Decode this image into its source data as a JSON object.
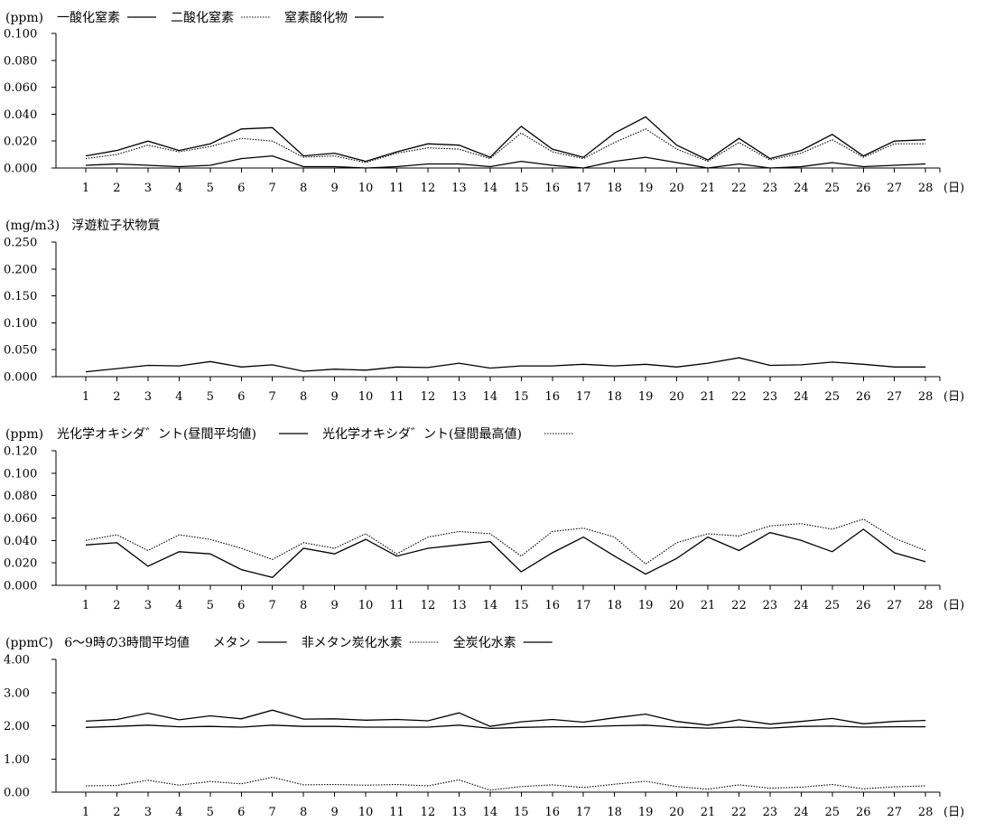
{
  "chart_data": [
    {
      "type": "line",
      "unit": "(ppm)",
      "legend_header": "",
      "x": [
        1,
        2,
        3,
        4,
        5,
        6,
        7,
        8,
        9,
        10,
        11,
        12,
        13,
        14,
        15,
        16,
        17,
        18,
        19,
        20,
        21,
        22,
        23,
        24,
        25,
        26,
        27,
        28
      ],
      "x_unit": "(日)",
      "ylim": [
        0,
        0.1
      ],
      "yticks": [
        "0.000",
        "0.020",
        "0.040",
        "0.060",
        "0.080",
        "0.100"
      ],
      "series": [
        {
          "name": "一酸化窒素",
          "style": "solid",
          "values": [
            0.002,
            0.003,
            0.002,
            0.001,
            0.002,
            0.007,
            0.009,
            0.001,
            0.001,
            0.0,
            0.001,
            0.003,
            0.003,
            0.001,
            0.005,
            0.002,
            0.0,
            0.005,
            0.008,
            0.004,
            0.0,
            0.003,
            0.0,
            0.001,
            0.004,
            0.001,
            0.002,
            0.003
          ]
        },
        {
          "name": "二酸化窒素",
          "style": "dotted",
          "values": [
            0.007,
            0.01,
            0.017,
            0.012,
            0.016,
            0.022,
            0.02,
            0.008,
            0.009,
            0.004,
            0.011,
            0.015,
            0.014,
            0.007,
            0.026,
            0.012,
            0.007,
            0.019,
            0.029,
            0.014,
            0.005,
            0.019,
            0.006,
            0.011,
            0.021,
            0.008,
            0.018,
            0.018
          ]
        },
        {
          "name": "窒素酸化物",
          "style": "solid",
          "values": [
            0.009,
            0.013,
            0.02,
            0.013,
            0.018,
            0.029,
            0.03,
            0.009,
            0.011,
            0.005,
            0.012,
            0.018,
            0.017,
            0.008,
            0.031,
            0.014,
            0.008,
            0.026,
            0.038,
            0.017,
            0.006,
            0.022,
            0.007,
            0.013,
            0.025,
            0.009,
            0.02,
            0.021
          ]
        }
      ]
    },
    {
      "type": "line",
      "unit": "(mg/m3)",
      "legend_header": "",
      "x": [
        1,
        2,
        3,
        4,
        5,
        6,
        7,
        8,
        9,
        10,
        11,
        12,
        13,
        14,
        15,
        16,
        17,
        18,
        19,
        20,
        21,
        22,
        23,
        24,
        25,
        26,
        27,
        28
      ],
      "x_unit": "(日)",
      "ylim": [
        0,
        0.25
      ],
      "yticks": [
        "0.000",
        "0.050",
        "0.100",
        "0.150",
        "0.200",
        "0.250"
      ],
      "series": [
        {
          "name": "浮遊粒子状物質",
          "style": "none-legend",
          "values": [
            0.009,
            0.015,
            0.021,
            0.02,
            0.028,
            0.018,
            0.022,
            0.01,
            0.014,
            0.012,
            0.018,
            0.017,
            0.025,
            0.016,
            0.02,
            0.02,
            0.023,
            0.02,
            0.023,
            0.018,
            0.025,
            0.035,
            0.021,
            0.022,
            0.027,
            0.023,
            0.018,
            0.018
          ]
        }
      ]
    },
    {
      "type": "line",
      "unit": "(ppm)",
      "legend_header": "",
      "x": [
        1,
        2,
        3,
        4,
        5,
        6,
        7,
        8,
        9,
        10,
        11,
        12,
        13,
        14,
        15,
        16,
        17,
        18,
        19,
        20,
        21,
        22,
        23,
        24,
        25,
        26,
        27,
        28
      ],
      "x_unit": "(日)",
      "ylim": [
        0,
        0.12
      ],
      "yticks": [
        "0.000",
        "0.020",
        "0.040",
        "0.060",
        "0.080",
        "0.100",
        "0.120"
      ],
      "series": [
        {
          "name": "光化学オキシダ゛ント(昼間平均値)",
          "style": "solid",
          "values": [
            0.036,
            0.038,
            0.017,
            0.03,
            0.028,
            0.014,
            0.007,
            0.033,
            0.028,
            0.041,
            0.026,
            0.033,
            0.036,
            0.039,
            0.012,
            0.029,
            0.043,
            0.026,
            0.01,
            0.024,
            0.043,
            0.031,
            0.047,
            0.04,
            0.03,
            0.05,
            0.029,
            0.021
          ]
        },
        {
          "name": "光化学オキシダ゛ント(昼間最高値)",
          "style": "dotted",
          "values": [
            0.04,
            0.045,
            0.031,
            0.045,
            0.041,
            0.033,
            0.023,
            0.038,
            0.033,
            0.046,
            0.028,
            0.043,
            0.048,
            0.046,
            0.026,
            0.048,
            0.051,
            0.043,
            0.019,
            0.038,
            0.046,
            0.044,
            0.053,
            0.055,
            0.05,
            0.059,
            0.042,
            0.031
          ]
        }
      ]
    },
    {
      "type": "line",
      "unit": "(ppmC)",
      "legend_header": "6～9時の3時間平均値",
      "x": [
        1,
        2,
        3,
        4,
        5,
        6,
        7,
        8,
        9,
        10,
        11,
        12,
        13,
        14,
        15,
        16,
        17,
        18,
        19,
        20,
        21,
        22,
        23,
        24,
        25,
        26,
        27,
        28
      ],
      "x_unit": "(日)",
      "ylim": [
        0,
        4.0
      ],
      "yticks": [
        "0.00",
        "1.00",
        "2.00",
        "3.00",
        "4.00"
      ],
      "series": [
        {
          "name": "メタン",
          "style": "solid",
          "values": [
            1.95,
            1.98,
            2.02,
            1.97,
            1.98,
            1.96,
            2.02,
            1.98,
            1.98,
            1.96,
            1.96,
            1.96,
            2.02,
            1.92,
            1.95,
            1.97,
            1.97,
            2.0,
            2.02,
            1.96,
            1.93,
            1.96,
            1.93,
            1.98,
            1.99,
            1.96,
            1.97,
            1.97
          ]
        },
        {
          "name": "非メタン炭化水素",
          "style": "dotted",
          "values": [
            0.19,
            0.2,
            0.36,
            0.21,
            0.32,
            0.25,
            0.45,
            0.22,
            0.23,
            0.21,
            0.23,
            0.19,
            0.37,
            0.06,
            0.17,
            0.22,
            0.14,
            0.24,
            0.33,
            0.17,
            0.09,
            0.22,
            0.12,
            0.15,
            0.23,
            0.1,
            0.16,
            0.19
          ]
        },
        {
          "name": "全炭化水素",
          "style": "solid",
          "values": [
            2.14,
            2.19,
            2.38,
            2.18,
            2.3,
            2.21,
            2.47,
            2.2,
            2.21,
            2.17,
            2.19,
            2.15,
            2.39,
            1.98,
            2.12,
            2.19,
            2.11,
            2.24,
            2.35,
            2.13,
            2.02,
            2.18,
            2.05,
            2.13,
            2.22,
            2.06,
            2.13,
            2.16
          ]
        }
      ]
    }
  ]
}
